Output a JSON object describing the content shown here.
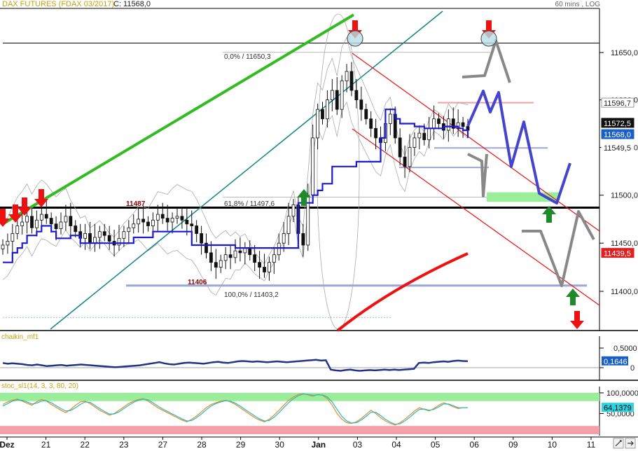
{
  "header": {
    "instrument": "DAX FUTURES (FDAX 03/2017)",
    "close_label": "C: 11568,0",
    "timeframe": "60 mins , LOG"
  },
  "colors": {
    "candles": "#111111",
    "stepline": "#1a1ad6",
    "bollinger": "#aaaaaa",
    "uptrend_green": "#33bb22",
    "teal_channel": "#11858a",
    "red_line": "#ee1111",
    "projection_blue": "#4444cc",
    "projection_gray": "#888888",
    "chaikin_line": "#223388",
    "stoch_orange": "#ee8822",
    "stoch_cyan": "#22bbcc",
    "zone_green": "#99ee99",
    "zone_red": "#f4a0a8",
    "level_lightblue": "#9aa8d8"
  },
  "chart_data": [
    {
      "type": "candlestick",
      "title": "DAX FUTURES (FDAX 03/2017)",
      "ylim": [
        11360,
        11680
      ],
      "yscale": "log",
      "price_ticks": [
        "11650,0",
        "11600,0",
        "11550,0",
        "11500,0",
        "11450,0",
        "11400,0"
      ],
      "price_tick_values": [
        11650,
        11600,
        11550,
        11500,
        11450,
        11400
      ],
      "x_labels": [
        "Dez",
        "21",
        "22",
        "23",
        "27",
        "28",
        "29",
        "30",
        "Jan",
        "03",
        "04",
        "05",
        "06",
        "09",
        "10",
        "11"
      ],
      "price_badges": [
        {
          "label": "11596,7",
          "value": 11596.7,
          "style": "outline"
        },
        {
          "label": "11572,5",
          "value": 11572.5,
          "style": "black"
        },
        {
          "label": "11568,0",
          "value": 11568.0,
          "style": "blue"
        },
        {
          "label": "11549,5",
          "value": 11549.5,
          "style": "plain"
        },
        {
          "label": "11439,5",
          "value": 11439.5,
          "style": "red"
        }
      ],
      "annotations": [
        {
          "text": "11487",
          "value": 11487
        },
        {
          "text": "11406",
          "value": 11406
        },
        {
          "text": "0,0% / 11650,3",
          "value": 11650.3
        },
        {
          "text": "61,8% / 11497,6",
          "value": 11497.6
        },
        {
          "text": "100,0% / 11403,2",
          "value": 11403.2
        }
      ],
      "horizontal_levels": [
        11660,
        11650.3,
        11597,
        11549.5,
        11529,
        11498,
        11487,
        11406,
        11373
      ],
      "close_series": [
        11448,
        11452,
        11460,
        11468,
        11472,
        11478,
        11466,
        11474,
        11480,
        11476,
        11470,
        11465,
        11472,
        11478,
        11468,
        11462,
        11455,
        11460,
        11450,
        11456,
        11462,
        11458,
        11452,
        11448,
        11455,
        11462,
        11466,
        11470,
        11475,
        11472,
        11468,
        11474,
        11480,
        11476,
        11472,
        11476,
        11478,
        11474,
        11470,
        11468,
        11460,
        11450,
        11440,
        11430,
        11425,
        11432,
        11438,
        11435,
        11442,
        11440,
        11445,
        11438,
        11430,
        11425,
        11420,
        11430,
        11438,
        11450,
        11460,
        11478,
        11490,
        11460,
        11448,
        11500,
        11560,
        11590,
        11580,
        11600,
        11610,
        11590,
        11620,
        11630,
        11610,
        11600,
        11590,
        11580,
        11570,
        11560,
        11555,
        11575,
        11585,
        11560,
        11540,
        11530,
        11550,
        11560,
        11565,
        11558,
        11570,
        11580,
        11575,
        11568,
        11580,
        11570,
        11576,
        11572,
        11568
      ],
      "step_series": [
        11430,
        11430,
        11440,
        11445,
        11450,
        11458,
        11458,
        11462,
        11468,
        11468,
        11462,
        11455,
        11455,
        11455,
        11458,
        11458,
        11450,
        11450,
        11450,
        11450,
        11450,
        11450,
        11450,
        11450,
        11450,
        11450,
        11450,
        11456,
        11456,
        11456,
        11456,
        11462,
        11462,
        11462,
        11462,
        11462,
        11462,
        11462,
        11462,
        11448,
        11448,
        11448,
        11448,
        11448,
        11448,
        11448,
        11448,
        11448,
        11445,
        11445,
        11445,
        11445,
        11445,
        11445,
        11445,
        11445,
        11445,
        11445,
        11445,
        11445,
        11445,
        11492,
        11492,
        11492,
        11500,
        11505,
        11512,
        11512,
        11530,
        11530,
        11530,
        11530,
        11530,
        11535,
        11535,
        11535,
        11535,
        11535,
        11560,
        11590,
        11590,
        11580,
        11575,
        11575,
        11575,
        11572,
        11572,
        11570,
        11570,
        11570,
        11570,
        11572,
        11572,
        11572,
        11570,
        11568,
        11560
      ]
    },
    {
      "type": "line",
      "title": "chaikin_mf1",
      "ylim": [
        -0.35,
        0.65
      ],
      "y_ticks": [
        "0,5000",
        "0"
      ],
      "y_tick_values": [
        0.5,
        0
      ],
      "last_value_label": "0,1646",
      "values": [
        0.12,
        0.1,
        0.11,
        0.1,
        0.09,
        0.07,
        0.06,
        0.08,
        0.06,
        0.04,
        0.05,
        0.06,
        0.07,
        0.05,
        0.06,
        0.07,
        0.08,
        0.07,
        0.06,
        0.05,
        0.04,
        0.03,
        0.02,
        0.01,
        0.02,
        0.03,
        0.04,
        0.05,
        0.06,
        0.08,
        0.1,
        0.12,
        0.14,
        0.11,
        0.09,
        0.08,
        0.1,
        0.12,
        0.13,
        0.12,
        0.11,
        0.1,
        0.12,
        0.14,
        0.15,
        0.13,
        0.12,
        0.14,
        0.16,
        0.17,
        0.16,
        0.15,
        0.16,
        0.15,
        0.14,
        0.15,
        0.16,
        0.15,
        0.14,
        0.15,
        0.16,
        0.17,
        0.18,
        0.19,
        0.2,
        0.18,
        0.19,
        -0.05,
        -0.07,
        -0.08,
        -0.06,
        -0.05,
        -0.07,
        -0.08,
        -0.07,
        -0.06,
        -0.07,
        -0.06,
        -0.05,
        -0.06,
        -0.05,
        -0.06,
        -0.05,
        -0.04,
        -0.03,
        0.12,
        0.13,
        0.12,
        0.14,
        0.15,
        0.16,
        0.15,
        0.17,
        0.18,
        0.17,
        0.165
      ]
    },
    {
      "type": "line",
      "title": "stoc_sl1(14, 3, 3, 80, 20)",
      "ylim": [
        0,
        105
      ],
      "y_ticks": [
        "100,0000",
        "50,0000"
      ],
      "y_tick_values": [
        100,
        50
      ],
      "last_value_label": "64,1379",
      "zones": [
        {
          "from": 80,
          "to": 100,
          "color": "#99ee99"
        },
        {
          "from": 0,
          "to": 20,
          "color": "#f4a0a8"
        }
      ],
      "series": [
        {
          "name": "",
          "values": [
            72,
            78,
            82,
            85,
            80,
            75,
            70,
            78,
            84,
            80,
            72,
            65,
            58,
            52,
            60,
            70,
            78,
            80,
            74,
            66,
            58,
            52,
            46,
            50,
            58,
            66,
            74,
            80,
            84,
            86,
            80,
            72,
            64,
            58,
            52,
            46,
            40,
            34,
            30,
            36,
            44,
            54,
            64,
            72,
            76,
            80,
            82,
            78,
            72,
            64,
            56,
            48,
            40,
            34,
            30,
            36,
            46,
            58,
            70,
            82,
            90,
            96,
            98,
            95,
            92,
            96,
            94,
            86,
            70,
            50,
            36,
            28,
            26,
            30,
            38,
            48,
            58,
            50,
            40,
            32,
            26,
            22,
            28,
            36,
            46,
            56,
            64,
            60,
            56,
            62,
            70,
            76,
            72,
            66,
            62,
            64,
            64
          ]
        },
        {
          "name": "",
          "values": [
            68,
            74,
            80,
            83,
            82,
            78,
            73,
            75,
            80,
            81,
            76,
            69,
            62,
            56,
            57,
            64,
            72,
            78,
            77,
            70,
            62,
            55,
            49,
            49,
            54,
            62,
            70,
            77,
            82,
            85,
            83,
            76,
            68,
            61,
            55,
            49,
            43,
            37,
            32,
            33,
            40,
            49,
            59,
            68,
            74,
            78,
            81,
            80,
            75,
            68,
            60,
            52,
            44,
            37,
            32,
            33,
            41,
            52,
            64,
            76,
            86,
            93,
            97,
            96,
            94,
            95,
            95,
            90,
            78,
            60,
            43,
            32,
            27,
            28,
            34,
            43,
            53,
            53,
            45,
            36,
            29,
            24,
            25,
            32,
            41,
            51,
            60,
            61,
            58,
            60,
            66,
            73,
            73,
            69,
            64,
            64,
            64
          ]
        }
      ]
    }
  ]
}
